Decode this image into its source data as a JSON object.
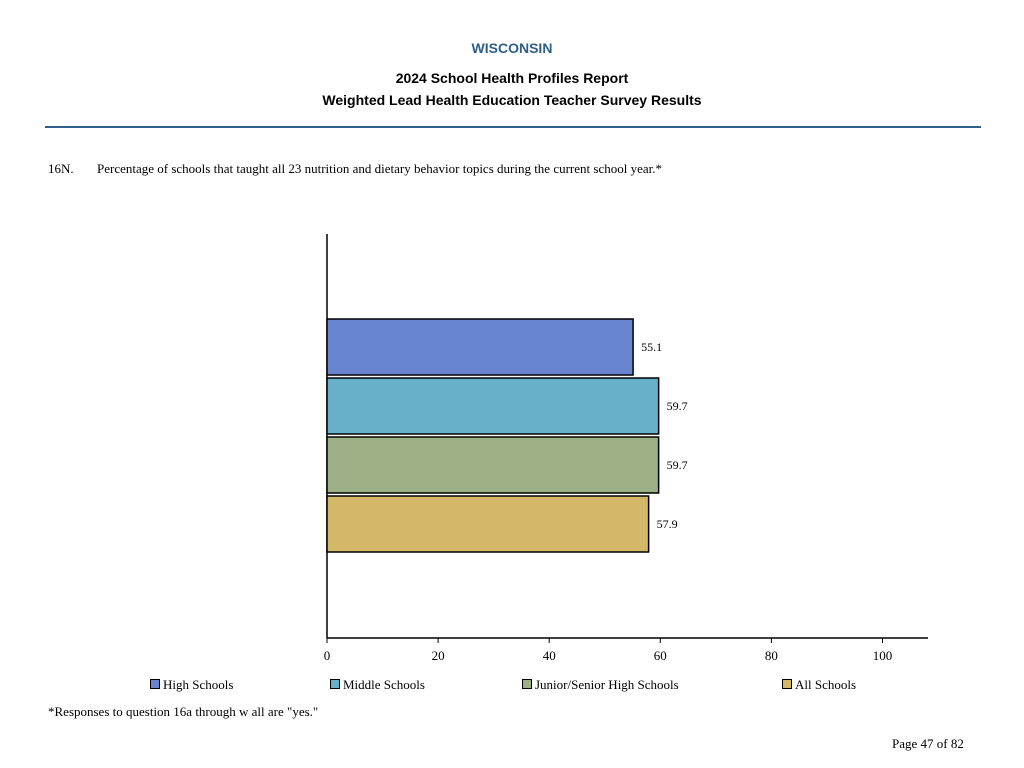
{
  "header": {
    "state": "WISCONSIN",
    "title": "2024 School Health Profiles Report",
    "subtitle": "Weighted Lead Health Education Teacher Survey Results"
  },
  "question": {
    "number": "16N.",
    "text": "Percentage of schools that taught all 23 nutrition and dietary behavior topics during the current school year.*"
  },
  "footnote": "*Responses to question 16a through w all are \"yes.\"",
  "page_label": "Page 47 of 82",
  "colors": {
    "state": "#2e5f8a",
    "rule": "#2e5f8a"
  },
  "chart_data": {
    "type": "bar",
    "orientation": "horizontal",
    "title": "",
    "xlabel": "",
    "ylabel": "",
    "xlim": [
      0,
      100
    ],
    "x_ticks": [
      0,
      20,
      40,
      60,
      80,
      100
    ],
    "grid": false,
    "legend_placement": "bottom",
    "series": [
      {
        "name": "High Schools",
        "value": 55.1,
        "label": "55.1",
        "color": "#6a85d0"
      },
      {
        "name": "Middle Schools",
        "value": 59.7,
        "label": "59.7",
        "color": "#66b1c9"
      },
      {
        "name": "Junior/Senior High Schools",
        "value": 59.7,
        "label": "59.7",
        "color": "#9caf85"
      },
      {
        "name": "All Schools",
        "value": 57.9,
        "label": "57.9",
        "color": "#d3b86a"
      }
    ]
  }
}
